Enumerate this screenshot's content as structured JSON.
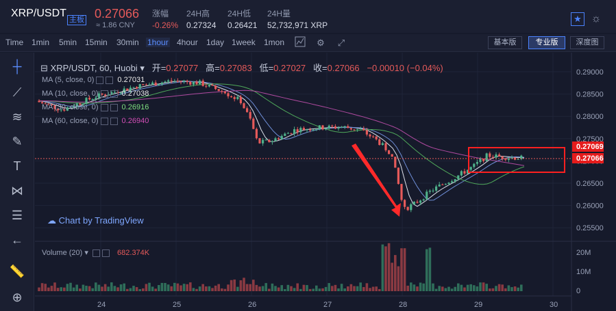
{
  "header": {
    "pair": "XRP/USDT",
    "pair_tag": "主板",
    "price": "0.27066",
    "cny": "≈ 1.86 CNY",
    "change_label": "涨幅",
    "change_value": "-0.26%",
    "high_label": "24H高",
    "high_value": "0.27324",
    "low_label": "24H低",
    "low_value": "0.26421",
    "volume_label": "24H量",
    "volume_value": "52,732,971 XRP"
  },
  "toolbar": {
    "timeframes": [
      "Time",
      "1min",
      "5min",
      "15min",
      "30min",
      "1hour",
      "4hour",
      "1day",
      "1week",
      "1mon"
    ],
    "active_timeframe": "1hour",
    "basic_label": "基本版",
    "pro_label": "专业版",
    "depth_label": "深度图"
  },
  "chart": {
    "title": "XRP/USDT, 60, Huobi",
    "open_label": "开=",
    "open_value": "0.27077",
    "high_label": "高=",
    "high_value": "0.27083",
    "low_label": "低=",
    "low_value": "0.27027",
    "close_label": "收=",
    "close_value": "0.27066",
    "change": "−0.00010 (−0.04%)",
    "ma_rows": [
      {
        "label": "MA (5, close, 0)",
        "value": "0.27031",
        "color": "#e8e8e8"
      },
      {
        "label": "MA (10, close, 0)",
        "value": "0.27038",
        "color": "#e8e8e8"
      },
      {
        "label": "MA (30, close, 0)",
        "value": "0.26916",
        "color": "#7fe07f"
      },
      {
        "label": "MA (60, close, 0)",
        "value": "0.26940",
        "color": "#d34fb7"
      }
    ],
    "watermark": "Chart by TradingView",
    "volume_label": "Volume (20)",
    "volume_value": "682.374K",
    "price_ticks": [
      "0.29000",
      "0.28500",
      "0.28000",
      "0.27500",
      "0.27000",
      "0.26500",
      "0.26000",
      "0.25500"
    ],
    "price_tag_high": "0.27069",
    "price_tag_close": "0.27066",
    "volume_ticks": [
      "20M",
      "10M",
      "0"
    ],
    "date_ticks": [
      "24",
      "25",
      "26",
      "27",
      "28",
      "29",
      "30"
    ],
    "colors": {
      "up": "#4fb08a",
      "down": "#e55a5a",
      "background": "#161a2b",
      "accent": "#4b83ff"
    }
  }
}
